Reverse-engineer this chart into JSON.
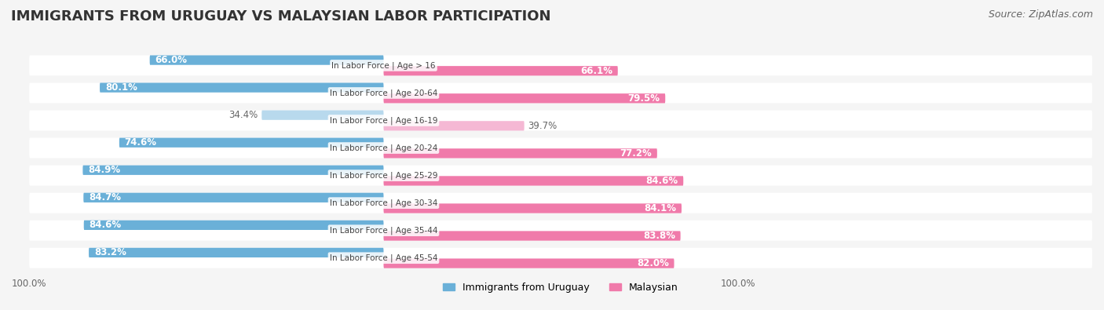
{
  "title": "IMMIGRANTS FROM URUGUAY VS MALAYSIAN LABOR PARTICIPATION",
  "source": "Source: ZipAtlas.com",
  "categories": [
    "In Labor Force | Age > 16",
    "In Labor Force | Age 20-64",
    "In Labor Force | Age 16-19",
    "In Labor Force | Age 20-24",
    "In Labor Force | Age 25-29",
    "In Labor Force | Age 30-34",
    "In Labor Force | Age 35-44",
    "In Labor Force | Age 45-54"
  ],
  "uruguay_values": [
    66.0,
    80.1,
    34.4,
    74.6,
    84.9,
    84.7,
    84.6,
    83.2
  ],
  "malaysian_values": [
    66.1,
    79.5,
    39.7,
    77.2,
    84.6,
    84.1,
    83.8,
    82.0
  ],
  "uruguay_color": "#6ab0d8",
  "uruguay_color_light": "#b8d9ed",
  "malaysian_color": "#f07aaa",
  "malaysian_color_light": "#f5b8d4",
  "label_color_dark": "#ffffff",
  "label_color_light": "#888888",
  "background_color": "#f5f5f5",
  "bar_bg_color": "#e8e8e8",
  "x_min": 0,
  "x_max": 100,
  "legend_labels": [
    "Immigrants from Uruguay",
    "Malaysian"
  ],
  "title_fontsize": 13,
  "source_fontsize": 9,
  "label_fontsize": 8.5,
  "tick_fontsize": 8.5
}
